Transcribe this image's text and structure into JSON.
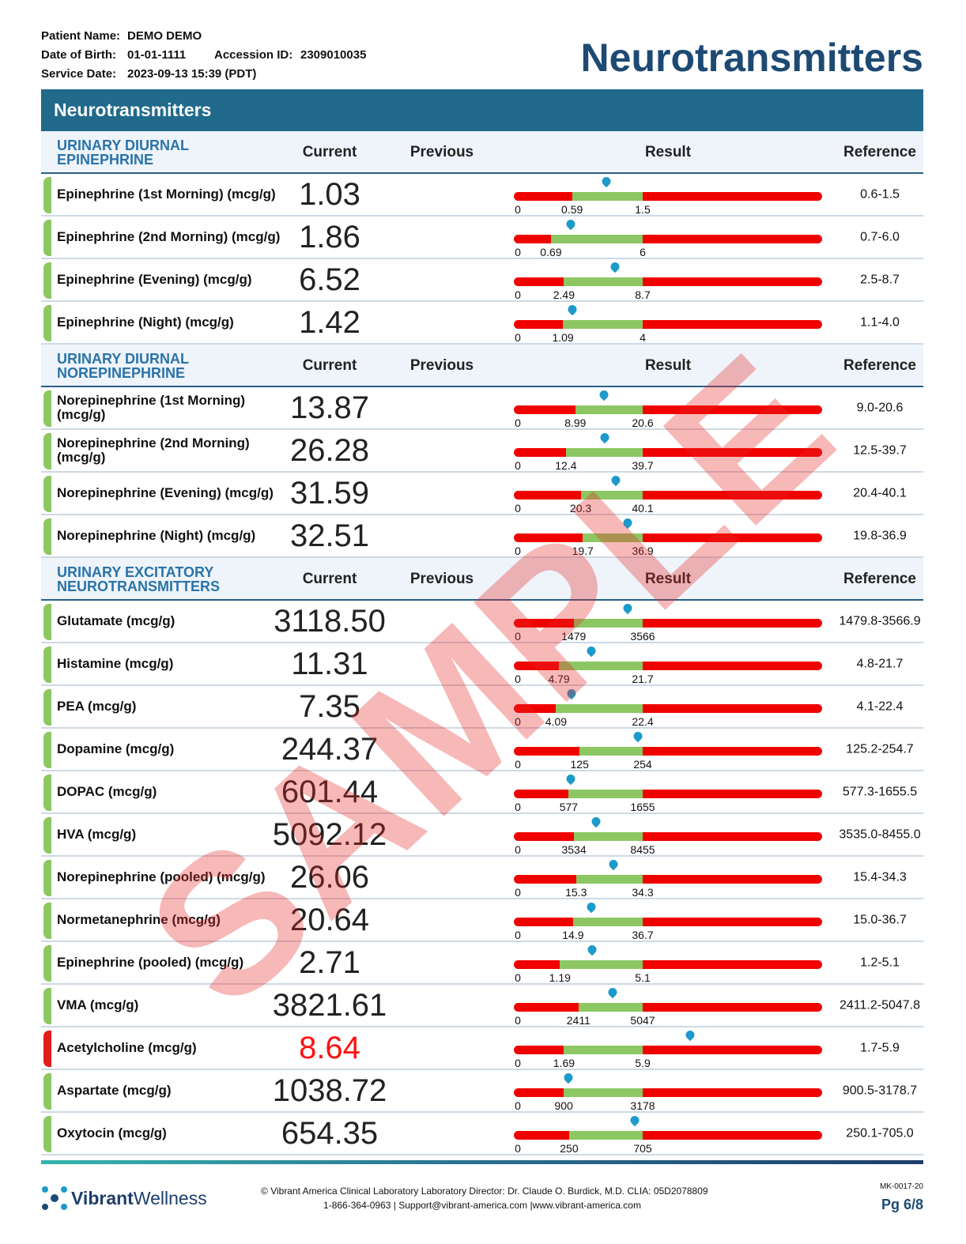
{
  "header": {
    "patient_name_label": "Patient Name:",
    "patient_name": "DEMO DEMO",
    "dob_label": "Date of Birth:",
    "dob": "01-01-1111",
    "accession_label": "Accession ID:",
    "accession": "2309010035",
    "service_date_label": "Service Date:",
    "service_date": "2023-09-13 15:39 (PDT)",
    "title": "Neurotransmitters"
  },
  "banner": "Neurotransmitters",
  "bar_start_label": "0",
  "sections": [
    {
      "title": "URINARY DIURNAL EPINEPHRINE",
      "columns": [
        "Current",
        "Previous",
        "Result",
        "Reference"
      ],
      "rows": [
        {
          "name": "Epinephrine (1st Morning) (mcg/g)",
          "current": "1.03",
          "low": "0.59",
          "high": "1.5",
          "reference": "0.6-1.5",
          "flag": "normal"
        },
        {
          "name": "Epinephrine (2nd Morning) (mcg/g)",
          "current": "1.86",
          "low": "0.69",
          "high": "6",
          "reference": "0.7-6.0",
          "flag": "normal"
        },
        {
          "name": "Epinephrine (Evening) (mcg/g)",
          "current": "6.52",
          "low": "2.49",
          "high": "8.7",
          "reference": "2.5-8.7",
          "flag": "normal"
        },
        {
          "name": "Epinephrine (Night) (mcg/g)",
          "current": "1.42",
          "low": "1.09",
          "high": "4",
          "reference": "1.1-4.0",
          "flag": "normal"
        }
      ]
    },
    {
      "title": "URINARY DIURNAL NOREPINEPHRINE",
      "columns": [
        "Current",
        "Previous",
        "Result",
        "Reference"
      ],
      "rows": [
        {
          "name": "Norepinephrine (1st Morning) (mcg/g)",
          "current": "13.87",
          "low": "8.99",
          "high": "20.6",
          "reference": "9.0-20.6",
          "flag": "normal"
        },
        {
          "name": "Norepinephrine (2nd Morning) (mcg/g)",
          "current": "26.28",
          "low": "12.4",
          "high": "39.7",
          "reference": "12.5-39.7",
          "flag": "normal"
        },
        {
          "name": "Norepinephrine (Evening) (mcg/g)",
          "current": "31.59",
          "low": "20.3",
          "high": "40.1",
          "reference": "20.4-40.1",
          "flag": "normal"
        },
        {
          "name": "Norepinephrine (Night) (mcg/g)",
          "current": "32.51",
          "low": "19.7",
          "high": "36.9",
          "reference": "19.8-36.9",
          "flag": "normal"
        }
      ]
    },
    {
      "title": "URINARY EXCITATORY NEUROTRANSMITTERS",
      "columns": [
        "Current",
        "Previous",
        "Result",
        "Reference"
      ],
      "rows": [
        {
          "name": "Glutamate (mcg/g)",
          "current": "3118.50",
          "low": "1479",
          "high": "3566",
          "reference": "1479.8-3566.9",
          "flag": "normal"
        },
        {
          "name": "Histamine (mcg/g)",
          "current": "11.31",
          "low": "4.79",
          "high": "21.7",
          "reference": "4.8-21.7",
          "flag": "normal"
        },
        {
          "name": "PEA (mcg/g)",
          "current": "7.35",
          "low": "4.09",
          "high": "22.4",
          "reference": "4.1-22.4",
          "flag": "normal"
        },
        {
          "name": "Dopamine (mcg/g)",
          "current": "244.37",
          "low": "125",
          "high": "254",
          "reference": "125.2-254.7",
          "flag": "normal"
        },
        {
          "name": "DOPAC (mcg/g)",
          "current": "601.44",
          "low": "577",
          "high": "1655",
          "reference": "577.3-1655.5",
          "flag": "normal"
        },
        {
          "name": "HVA (mcg/g)",
          "current": "5092.12",
          "low": "3534",
          "high": "8455",
          "reference": "3535.0-8455.0",
          "flag": "normal"
        },
        {
          "name": "Norepinephrine (pooled) (mcg/g)",
          "current": "26.06",
          "low": "15.3",
          "high": "34.3",
          "reference": "15.4-34.3",
          "flag": "normal"
        },
        {
          "name": "Normetanephrine (mcg/g)",
          "current": "20.64",
          "low": "14.9",
          "high": "36.7",
          "reference": "15.0-36.7",
          "flag": "normal"
        },
        {
          "name": "Epinephrine (pooled) (mcg/g)",
          "current": "2.71",
          "low": "1.19",
          "high": "5.1",
          "reference": "1.2-5.1",
          "flag": "normal"
        },
        {
          "name": "VMA (mcg/g)",
          "current": "3821.61",
          "low": "2411",
          "high": "5047",
          "reference": "2411.2-5047.8",
          "flag": "normal"
        },
        {
          "name": "Acetylcholine (mcg/g)",
          "current": "8.64",
          "low": "1.69",
          "high": "5.9",
          "reference": "1.7-5.9",
          "flag": "high"
        },
        {
          "name": "Aspartate (mcg/g)",
          "current": "1038.72",
          "low": "900",
          "high": "3178",
          "reference": "900.5-3178.7",
          "flag": "normal"
        },
        {
          "name": "Oxytocin (mcg/g)",
          "current": "654.35",
          "low": "250",
          "high": "705",
          "reference": "250.1-705.0",
          "flag": "normal"
        }
      ]
    }
  ],
  "watermark": "SAMPLE",
  "footer": {
    "logo_bold": "Vibrant",
    "logo_light": "Wellness",
    "line1": "Vibrant America Clinical Laboratory Laboratory Director: Dr. Claude O. Burdick, M.D. CLIA: 05D2078809",
    "line2": "1-866-364-0963 | Support@vibrant-america.com |www.vibrant-america.com",
    "doc_code": "MK-0017-20",
    "page": "Pg 6/8"
  }
}
